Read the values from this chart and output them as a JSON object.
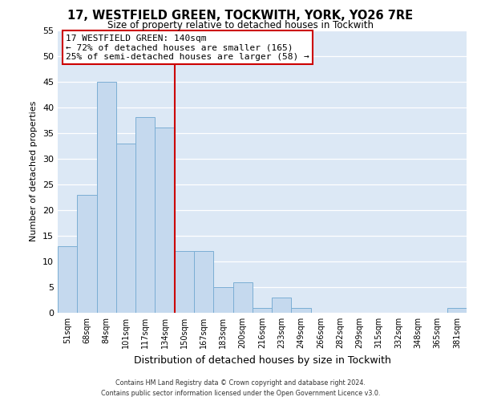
{
  "title": "17, WESTFIELD GREEN, TOCKWITH, YORK, YO26 7RE",
  "subtitle": "Size of property relative to detached houses in Tockwith",
  "xlabel": "Distribution of detached houses by size in Tockwith",
  "ylabel": "Number of detached properties",
  "bar_labels": [
    "51sqm",
    "68sqm",
    "84sqm",
    "101sqm",
    "117sqm",
    "134sqm",
    "150sqm",
    "167sqm",
    "183sqm",
    "200sqm",
    "216sqm",
    "233sqm",
    "249sqm",
    "266sqm",
    "282sqm",
    "299sqm",
    "315sqm",
    "332sqm",
    "348sqm",
    "365sqm",
    "381sqm"
  ],
  "bar_values": [
    13,
    23,
    45,
    33,
    38,
    36,
    12,
    12,
    5,
    6,
    1,
    3,
    1,
    0,
    0,
    0,
    0,
    0,
    0,
    0,
    1
  ],
  "bar_color": "#c5d9ee",
  "bar_edge_color": "#7baed4",
  "vline_x": 5.5,
  "vline_color": "#cc0000",
  "ylim": [
    0,
    55
  ],
  "yticks": [
    0,
    5,
    10,
    15,
    20,
    25,
    30,
    35,
    40,
    45,
    50,
    55
  ],
  "annotation_title": "17 WESTFIELD GREEN: 140sqm",
  "annotation_line1": "← 72% of detached houses are smaller (165)",
  "annotation_line2": "25% of semi-detached houses are larger (58) →",
  "annotation_box_color": "#ffffff",
  "annotation_box_edge": "#cc0000",
  "footer_line1": "Contains HM Land Registry data © Crown copyright and database right 2024.",
  "footer_line2": "Contains public sector information licensed under the Open Government Licence v3.0.",
  "bg_color": "#ffffff",
  "plot_bg_color": "#dce8f5"
}
